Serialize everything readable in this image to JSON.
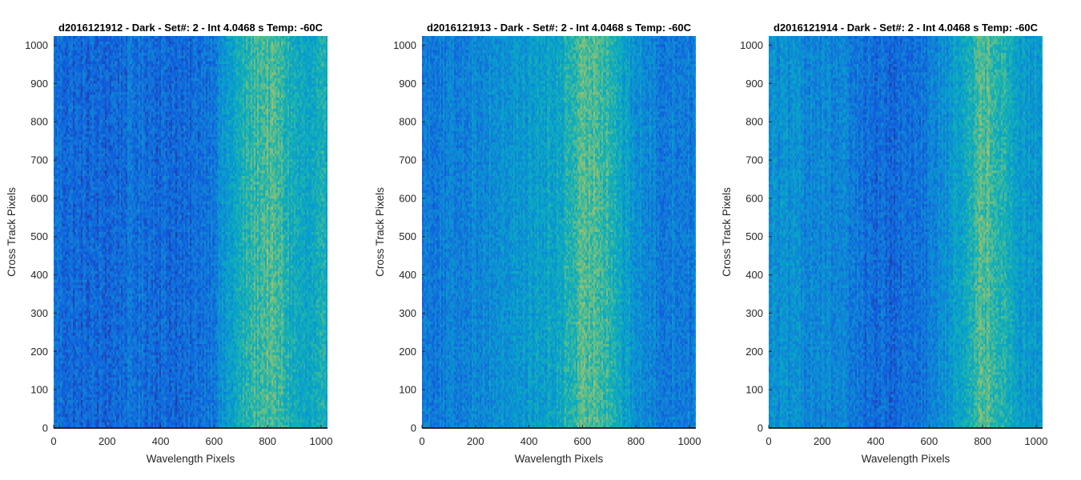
{
  "chart_data": [
    {
      "type": "heatmap",
      "title": "d2016121912 - Dark - Set#: 2 - Int 4.0468 s Temp: -60C",
      "xlabel": "Wavelength Pixels",
      "ylabel": "Cross Track Pixels",
      "xlim": [
        0,
        1024
      ],
      "ylim": [
        0,
        1024
      ],
      "xticks": [
        0,
        200,
        400,
        600,
        800,
        1000
      ],
      "yticks": [
        0,
        100,
        200,
        300,
        400,
        500,
        600,
        700,
        800,
        900,
        1000
      ],
      "colormap": "parula",
      "column_profile": {
        "x": [
          0,
          100,
          200,
          300,
          400,
          500,
          600,
          650,
          700,
          750,
          800,
          850,
          900,
          950,
          1024
        ],
        "level": [
          0.25,
          0.2,
          0.2,
          0.25,
          0.22,
          0.2,
          0.3,
          0.45,
          0.55,
          0.65,
          0.7,
          0.65,
          0.55,
          0.5,
          0.55
        ]
      }
    },
    {
      "type": "heatmap",
      "title": "d2016121913 - Dark - Set#: 2 - Int 4.0468 s Temp: -60C",
      "xlabel": "Wavelength Pixels",
      "ylabel": "Cross Track Pixels",
      "xlim": [
        0,
        1024
      ],
      "ylim": [
        0,
        1024
      ],
      "xticks": [
        0,
        200,
        400,
        600,
        800,
        1000
      ],
      "yticks": [
        0,
        100,
        200,
        300,
        400,
        500,
        600,
        700,
        800,
        900,
        1000
      ],
      "colormap": "parula",
      "column_profile": {
        "x": [
          0,
          100,
          200,
          300,
          400,
          500,
          550,
          600,
          650,
          700,
          750,
          800,
          900,
          1024
        ],
        "level": [
          0.3,
          0.3,
          0.35,
          0.4,
          0.45,
          0.5,
          0.6,
          0.68,
          0.72,
          0.65,
          0.5,
          0.4,
          0.3,
          0.3
        ]
      }
    },
    {
      "type": "heatmap",
      "title": "d2016121914 - Dark - Set#: 2 - Int 4.0468 s Temp: -60C",
      "xlabel": "Wavelength Pixels",
      "ylabel": "Cross Track Pixels",
      "xlim": [
        0,
        1024
      ],
      "ylim": [
        0,
        1024
      ],
      "xticks": [
        0,
        200,
        400,
        600,
        800,
        1000
      ],
      "yticks": [
        0,
        100,
        200,
        300,
        400,
        500,
        600,
        700,
        800,
        900,
        1000
      ],
      "colormap": "parula",
      "column_profile": {
        "x": [
          0,
          100,
          200,
          300,
          400,
          500,
          600,
          700,
          750,
          800,
          850,
          900,
          950,
          1024
        ],
        "level": [
          0.4,
          0.38,
          0.35,
          0.3,
          0.22,
          0.22,
          0.3,
          0.45,
          0.6,
          0.7,
          0.68,
          0.55,
          0.45,
          0.45
        ]
      }
    }
  ]
}
